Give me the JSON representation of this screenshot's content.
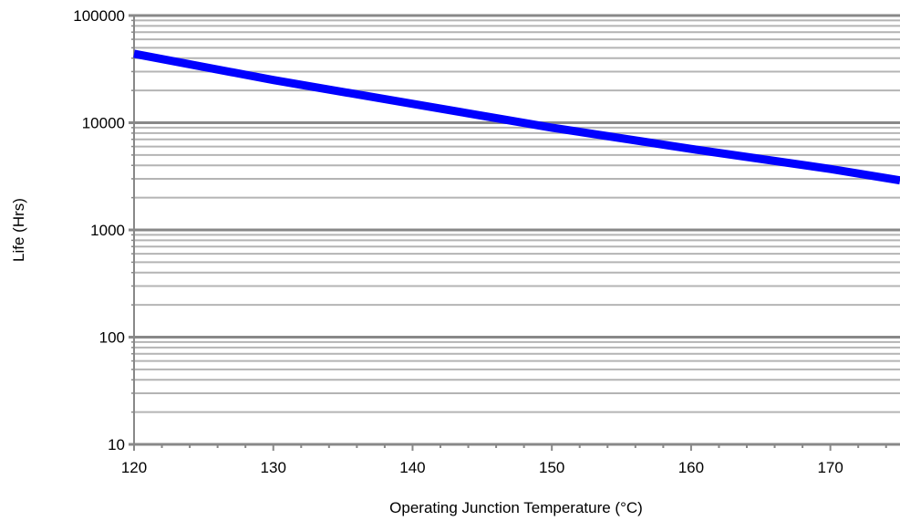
{
  "chart_data": {
    "type": "line",
    "title": "",
    "xlabel": "Operating Junction Temperature (°C)",
    "ylabel": "Life (Hrs)",
    "x_scale": "linear",
    "y_scale": "log",
    "xlim": [
      120,
      175
    ],
    "ylim": [
      10,
      100000
    ],
    "x_ticks": [
      120,
      130,
      140,
      150,
      160,
      170
    ],
    "x_tick_labels": [
      "120",
      "130",
      "140",
      "150",
      "160",
      "170"
    ],
    "y_ticks": [
      10,
      100,
      1000,
      10000,
      100000
    ],
    "y_tick_labels": [
      "10",
      "100",
      "1000",
      "10000",
      "100000"
    ],
    "grid": "major and minor horizontal",
    "legend": "none",
    "series": [
      {
        "color": "#0000ff",
        "x": [
          120,
          130,
          140,
          150,
          160,
          170,
          175
        ],
        "y": [
          44000,
          25000,
          15000,
          9000,
          5700,
          3700,
          2900
        ]
      }
    ]
  },
  "colors": {
    "series": "#0000ff",
    "major_grid": "#888888",
    "minor_grid": "#b4b4b4",
    "axis": "#888888"
  }
}
